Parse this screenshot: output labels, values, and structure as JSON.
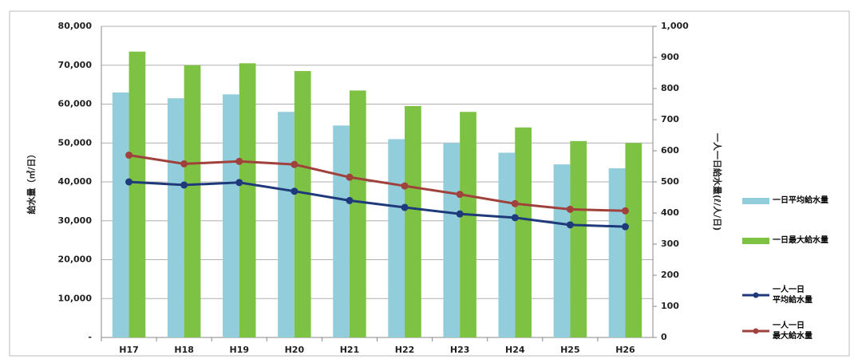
{
  "chart_data": {
    "type": "bar-line",
    "categories": [
      "H17",
      "H18",
      "H19",
      "H20",
      "H21",
      "H22",
      "H23",
      "H24",
      "H25",
      "H26"
    ],
    "series": [
      {
        "name": "一日平均給水量",
        "type": "bar",
        "color": "#92cddc",
        "values": [
          63000,
          61500,
          62500,
          58000,
          54500,
          51000,
          50000,
          47500,
          44500,
          43500
        ]
      },
      {
        "name": "一日最大給水量",
        "type": "bar",
        "color": "#7dc242",
        "values": [
          73500,
          70000,
          70500,
          68500,
          63500,
          59500,
          58000,
          54000,
          50500,
          50000
        ]
      },
      {
        "name": "一人一日\n平均給水量",
        "type": "line",
        "axis": "y2",
        "color": "#1f3a7a",
        "values": [
          500,
          490,
          498,
          470,
          440,
          418,
          397,
          385,
          362,
          356
        ]
      },
      {
        "name": "一人一日\n最大給水量",
        "type": "line",
        "axis": "y2",
        "color": "#a0413c",
        "values": [
          586,
          558,
          566,
          556,
          515,
          487,
          460,
          430,
          412,
          407
        ]
      }
    ],
    "y_label": "給水量（㎥/日）",
    "y2_label": "一人一日給水量(ℓ/人/日)",
    "ylim": [
      0,
      80000
    ],
    "yticks": [
      {
        "value": 0,
        "label": "-"
      },
      {
        "value": 10000,
        "label": "10,000"
      },
      {
        "value": 20000,
        "label": "20,000"
      },
      {
        "value": 30000,
        "label": "30,000"
      },
      {
        "value": 40000,
        "label": "40,000"
      },
      {
        "value": 50000,
        "label": "50,000"
      },
      {
        "value": 60000,
        "label": "60,000"
      },
      {
        "value": 70000,
        "label": "70,000"
      },
      {
        "value": 80000,
        "label": "80,000"
      }
    ],
    "y2lim": [
      0,
      1000
    ],
    "y2ticks": [
      0,
      100,
      200,
      300,
      400,
      500,
      600,
      700,
      800,
      900,
      {
        "value": 1000,
        "label": "1,000"
      }
    ],
    "grid": true,
    "legend": "right"
  }
}
